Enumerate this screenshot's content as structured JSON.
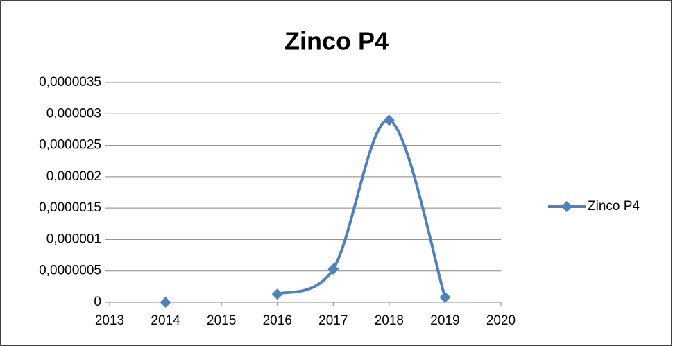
{
  "chart_data": {
    "type": "line",
    "title": "Zinco P4",
    "x": [
      2014,
      2015,
      2016,
      2017,
      2018,
      2019
    ],
    "series": [
      {
        "name": "Zinco P4",
        "color": "#4f81bd",
        "values": [
          0,
          null,
          1.3e-07,
          5.3e-07,
          2.9e-06,
          8e-08
        ]
      }
    ],
    "xlim": [
      2013,
      2020
    ],
    "xticks": [
      2013,
      2014,
      2015,
      2016,
      2017,
      2018,
      2019,
      2020
    ],
    "ylim": [
      0,
      3.5e-06
    ],
    "yticks": [
      0,
      {
        "value": 5e-07,
        "label": "0,0000005"
      },
      {
        "value": 1e-06,
        "label": "0,000001"
      },
      {
        "value": 1.5e-06,
        "label": "0,0000015"
      },
      {
        "value": 2e-06,
        "label": "0,000002"
      },
      {
        "value": 2.5e-06,
        "label": "0,0000025"
      },
      {
        "value": 3e-06,
        "label": "0,000003"
      },
      {
        "value": 3.5e-06,
        "label": "0,0000035"
      }
    ],
    "grid": true,
    "smooth": true,
    "legend": "right"
  }
}
